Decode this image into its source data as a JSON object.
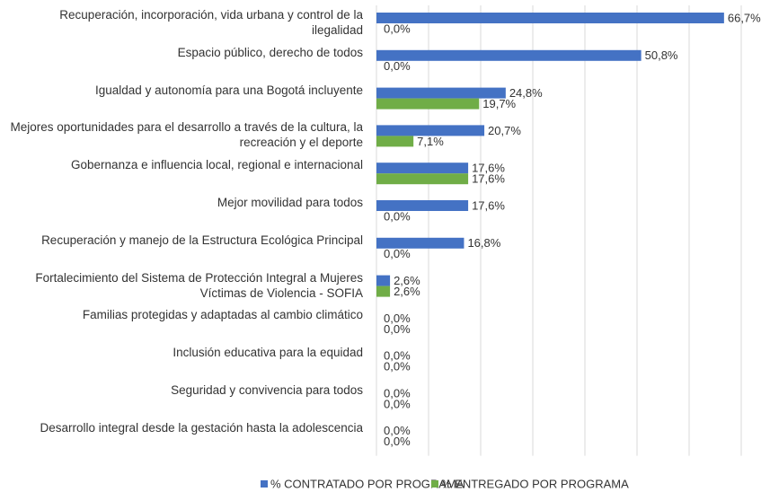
{
  "chart_data": {
    "type": "barh",
    "categories": [
      "Recuperación, incorporación, vida urbana y control de la ilegalidad",
      "Espacio público, derecho de todos",
      "Igualdad y autonomía para una Bogotá incluyente",
      "Mejores oportunidades para el desarrollo a través de la cultura, la recreación y el deporte",
      "Gobernanza e influencia local, regional e internacional",
      "Mejor movilidad para todos",
      "Recuperación y manejo de la Estructura Ecológica Principal",
      "Fortalecimiento del Sistema de Protección Integral a Mujeres Víctimas de Violencia - SOFIA",
      "Familias protegidas y adaptadas al cambio climático",
      "Inclusión educativa para la equidad",
      "Seguridad y convivencia para todos",
      "Desarrollo integral desde la gestación hasta la adolescencia"
    ],
    "series": [
      {
        "name": "% CONTRATADO POR PROGRAMA",
        "color": "#4472c4",
        "values": [
          66.7,
          50.8,
          24.8,
          20.7,
          17.6,
          17.6,
          16.8,
          2.6,
          0,
          0,
          0,
          0
        ],
        "value_labels": [
          "66,7%",
          "50,8%",
          "24,8%",
          "20,7%",
          "17,6%",
          "17,6%",
          "16,8%",
          "2,6%",
          "0,0%",
          "0,0%",
          "0,0%",
          "0,0%"
        ]
      },
      {
        "name": "% ENTREGADO POR PROGRAMA",
        "color": "#70ad47",
        "values": [
          0,
          0,
          19.7,
          7.1,
          17.6,
          0,
          0,
          2.6,
          0,
          0,
          0,
          0
        ],
        "value_labels": [
          "0,0%",
          "0,0%",
          "19,7%",
          "7,1%",
          "17,6%",
          "0,0%",
          "0,0%",
          "2,6%",
          "0,0%",
          "0,0%",
          "0,0%",
          "0,0%"
        ]
      }
    ],
    "xlim": [
      0,
      70
    ],
    "xticks": [
      0,
      10,
      20,
      30,
      40,
      50,
      60,
      70
    ],
    "grid": true,
    "legend": "bottom"
  }
}
